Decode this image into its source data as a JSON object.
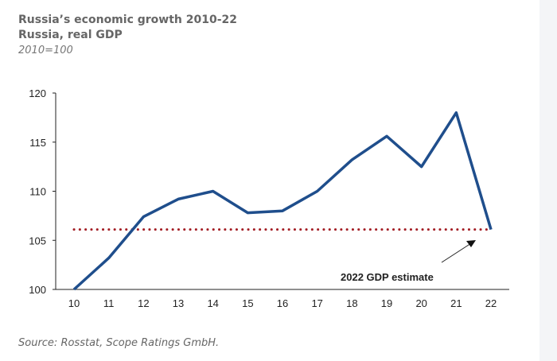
{
  "chart_data": {
    "type": "line",
    "title": "Russia’s economic growth 2010-22",
    "subtitle": "Russia, real GDP",
    "ylabel": "2010=100",
    "xlabel": "",
    "categories": [
      "10",
      "11",
      "12",
      "13",
      "14",
      "15",
      "16",
      "17",
      "18",
      "19",
      "20",
      "21",
      "22"
    ],
    "series": [
      {
        "name": "Real GDP",
        "color": "#1f4e8c",
        "values": [
          100,
          103.2,
          107.4,
          109.2,
          110.0,
          107.8,
          108.0,
          110.0,
          113.2,
          115.6,
          112.5,
          118.0,
          106.1
        ]
      }
    ],
    "reference_line": {
      "value": 106.1,
      "color": "#a31d24",
      "style": "dotted"
    },
    "annotation": "2022 GDP estimate",
    "ylim": [
      100,
      120
    ],
    "yticks": [
      "100",
      "105",
      "110",
      "115",
      "120"
    ],
    "grid": false,
    "legend": "none"
  },
  "source": "Source: Rosstat, Scope Ratings GmbH."
}
